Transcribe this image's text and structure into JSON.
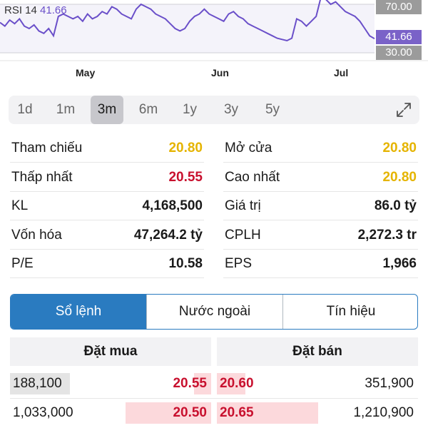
{
  "rsi": {
    "label": "RSI 14",
    "value": "41.66",
    "upper": "70.00",
    "lower": "30.00",
    "current_tag": "41.66",
    "months": [
      "May",
      "Jun",
      "Jul"
    ],
    "series": [
      55,
      52,
      57,
      54,
      58,
      52,
      50,
      53,
      48,
      46,
      50,
      44,
      60,
      62,
      60,
      58,
      60,
      56,
      62,
      58,
      60,
      64,
      62,
      68,
      66,
      62,
      60,
      58,
      66,
      70,
      68,
      66,
      62,
      60,
      58,
      54,
      50,
      48,
      50,
      56,
      60,
      62,
      66,
      62,
      60,
      58,
      56,
      62,
      64,
      60,
      58,
      54,
      52,
      50,
      48,
      46,
      44,
      42,
      41,
      40,
      42,
      58,
      56,
      52,
      56,
      60,
      76,
      74,
      70,
      72,
      68,
      64,
      62,
      60,
      56,
      50,
      44,
      41.66
    ],
    "color": "#6a4fc9"
  },
  "periods": {
    "items": [
      "1d",
      "1m",
      "3m",
      "6m",
      "1y",
      "3y",
      "5y"
    ],
    "active": "3m"
  },
  "stats": [
    {
      "left": {
        "label": "Tham chiếu",
        "value": "20.80",
        "tone": "yellow"
      },
      "right": {
        "label": "Mở cửa",
        "value": "20.80",
        "tone": "yellow"
      }
    },
    {
      "left": {
        "label": "Thấp nhất",
        "value": "20.55",
        "tone": "red"
      },
      "right": {
        "label": "Cao nhất",
        "value": "20.80",
        "tone": "yellow"
      }
    },
    {
      "left": {
        "label": "KL",
        "value": "4,168,500",
        "tone": ""
      },
      "right": {
        "label": "Giá trị",
        "value": "86.0 tỷ",
        "tone": ""
      }
    },
    {
      "left": {
        "label": "Vốn hóa",
        "value": "47,264.2 tỷ",
        "tone": ""
      },
      "right": {
        "label": "CPLH",
        "value": "2,272.3 tr",
        "tone": ""
      }
    },
    {
      "left": {
        "label": "P/E",
        "value": "10.58",
        "tone": ""
      },
      "right": {
        "label": "EPS",
        "value": "1,966",
        "tone": ""
      }
    }
  ],
  "tabs": [
    "Sổ lệnh",
    "Nước ngoài",
    "Tín hiệu"
  ],
  "orderbook": {
    "buy_header": "Đặt mua",
    "sell_header": "Đặt bán",
    "rows": [
      {
        "buy_vol": "188,100",
        "buy_price": "20.55",
        "sell_price": "20.60",
        "sell_vol": "351,900"
      },
      {
        "buy_vol": "1,033,000",
        "buy_price": "20.50",
        "sell_price": "20.65",
        "sell_vol": "1,210,900"
      }
    ]
  }
}
